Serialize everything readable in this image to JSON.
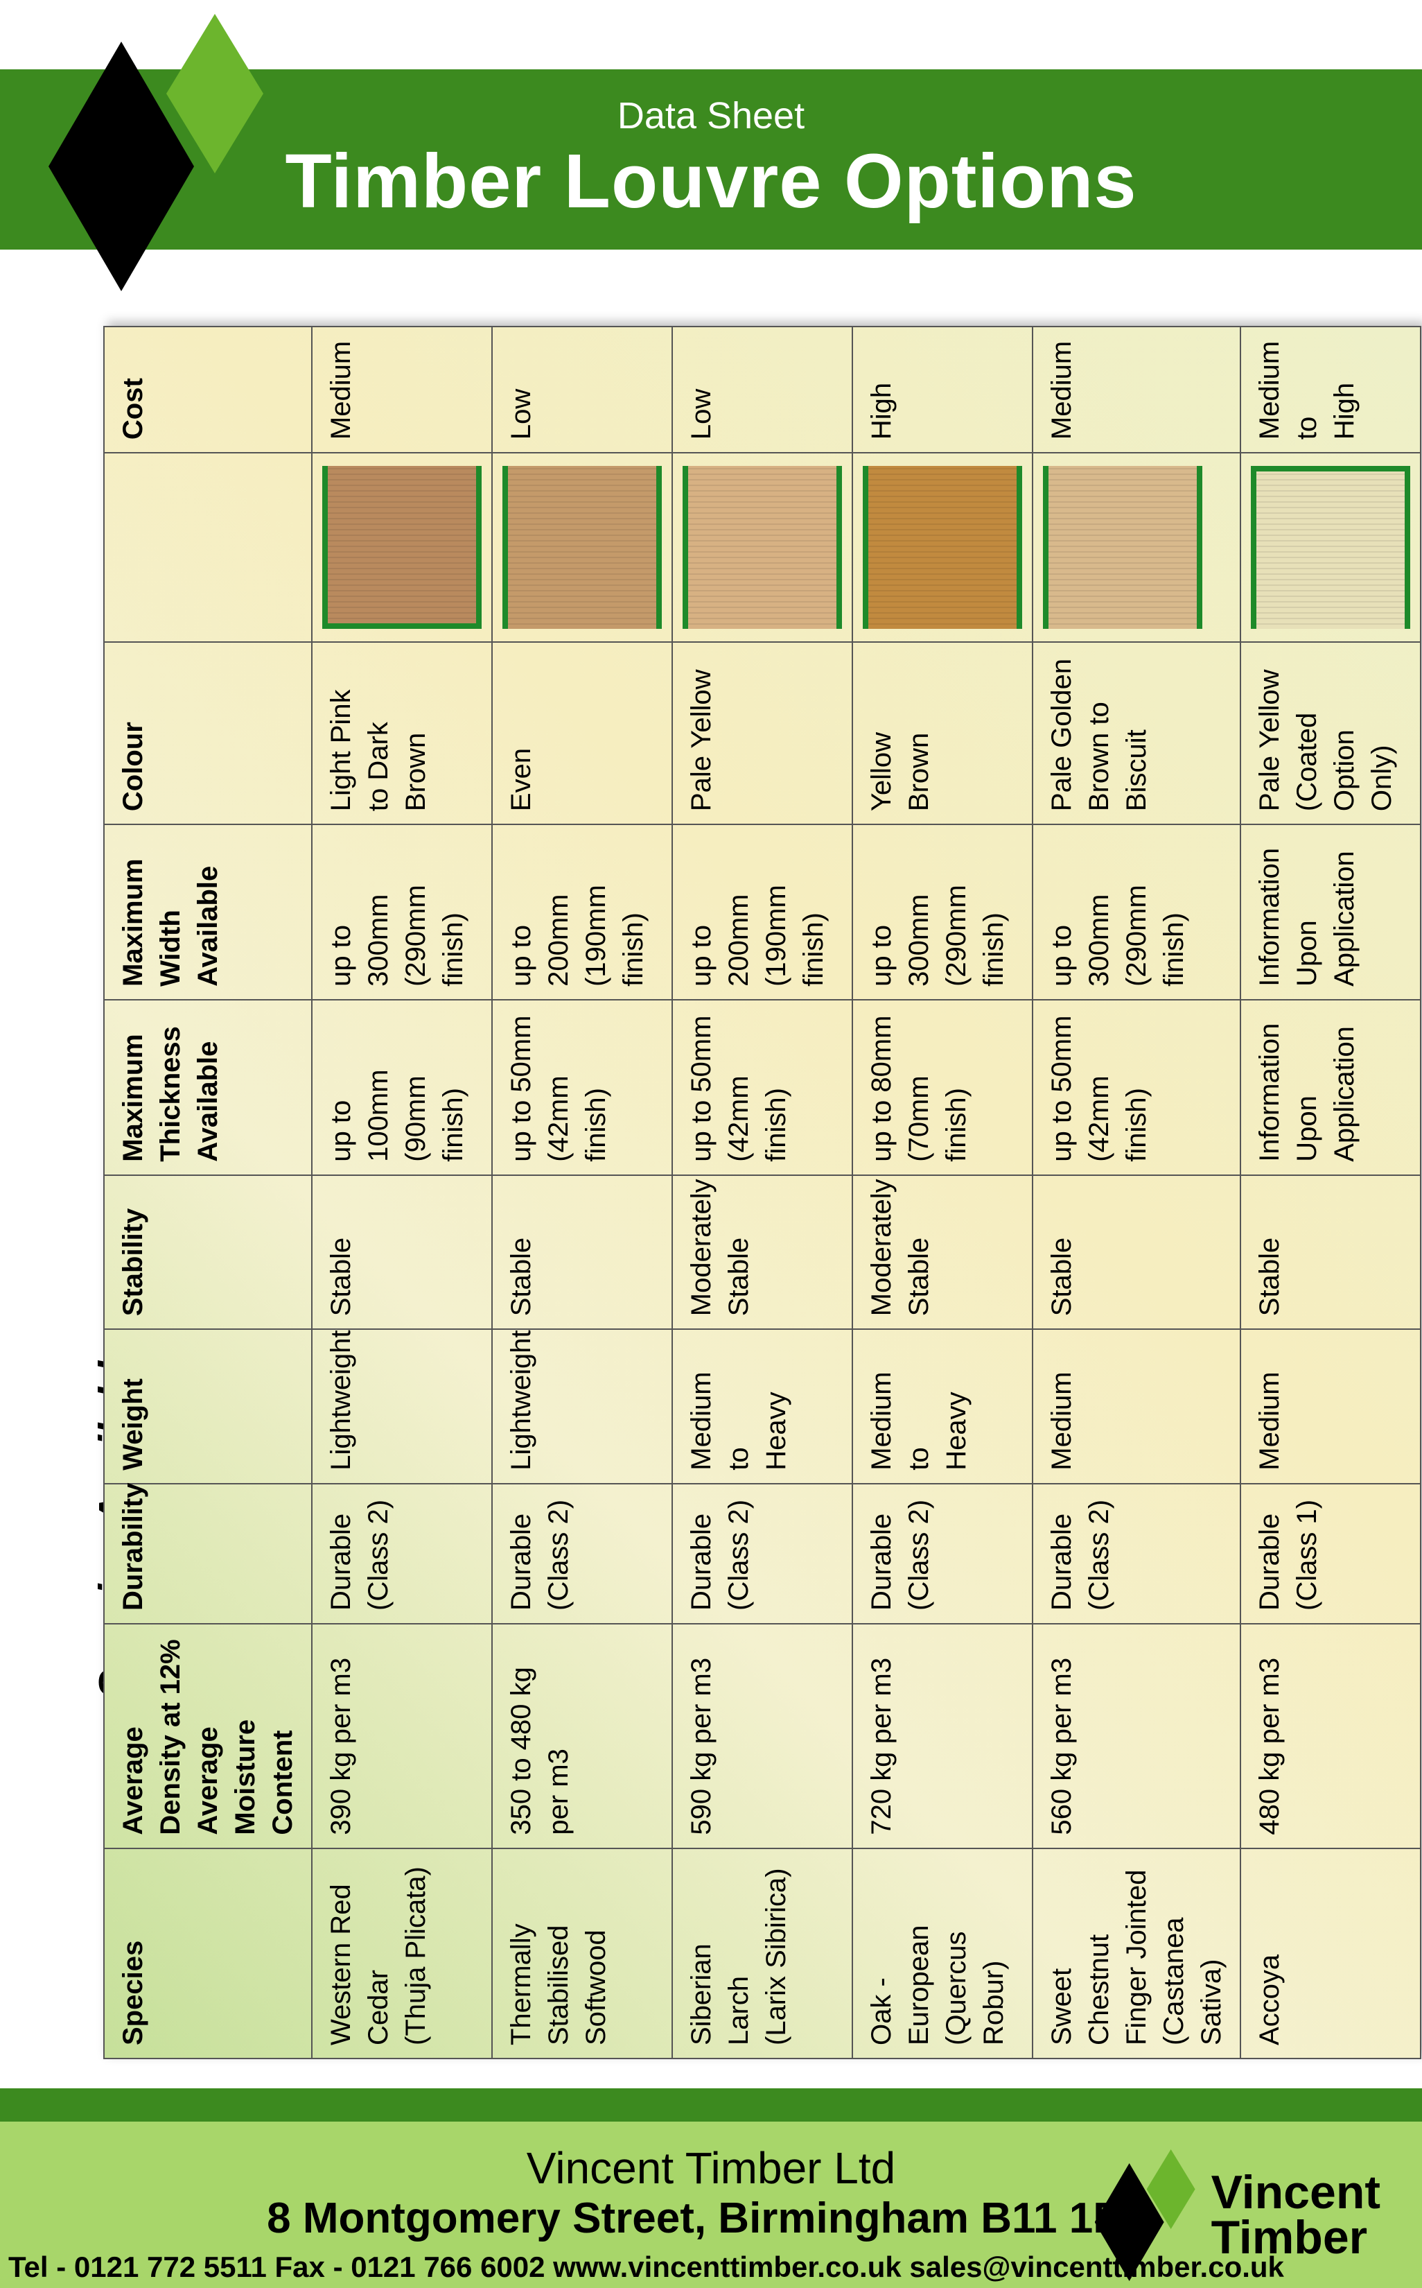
{
  "header": {
    "pretitle": "Data Sheet",
    "title": "Timber Louvre Options"
  },
  "side_caption": "Species Available",
  "colors": {
    "header_band": "#3c8a1f",
    "footer_light": "#a8d66a",
    "swatch_border": "#1e8a2a",
    "logo_green": "#6cb52d"
  },
  "table": {
    "headers": {
      "species": "Species",
      "density": "Average\nDensity at 12%\nAverage Moisture\nContent",
      "durability": "Durability",
      "weight": "Weight",
      "stability": "Stability",
      "thickness": "Maximum\nThickness\nAvailable",
      "width": "Maximum\nWidth\nAvailable",
      "colour": "Colour",
      "swatch": "",
      "cost": "Cost"
    },
    "rows": [
      {
        "species": "Western Red\nCedar\n(Thuja Plicata)",
        "density": "390 kg per m3",
        "durability": "Durable\n(Class 2)",
        "weight": "Lightweight",
        "stability": "Stable",
        "thickness": "up to 100mm\n(90mm finish)",
        "width": "up to 300mm\n(290mm finish)",
        "colour": "Light Pink\nto Dark Brown",
        "swatch_color": "#b98a5e",
        "cost": "Medium"
      },
      {
        "species": "Thermally\nStabilised\nSoftwood",
        "density": "350 to 480 kg per m3",
        "durability": "Durable\n(Class 2)",
        "weight": "Lightweight",
        "stability": "Stable",
        "thickness": "up to 50mm\n(42mm finish)",
        "width": "up to 200mm\n(190mm finish)",
        "colour": "Even",
        "swatch_color": "#c49a6a",
        "cost": "Low"
      },
      {
        "species": "Siberian\nLarch\n(Larix Sibirica)",
        "density": "590 kg per m3",
        "durability": "Durable\n(Class 2)",
        "weight": "Medium\nto\nHeavy",
        "stability": "Moderately\nStable",
        "thickness": "up to 50mm\n(42mm finish)",
        "width": "up to 200mm\n(190mm finish)",
        "colour": "Pale Yellow",
        "swatch_color": "#d7b183",
        "cost": "Low"
      },
      {
        "species": "Oak - European\n(Quercus Robur)",
        "density": "720 kg per m3",
        "durability": "Durable\n(Class 2)",
        "weight": "Medium\nto\nHeavy",
        "stability": "Moderately\nStable",
        "thickness": "up to 80mm\n(70mm finish)",
        "width": "up to 300mm\n(290mm finish)",
        "colour": "Yellow Brown",
        "swatch_color": "#c18a3f",
        "cost": "High"
      },
      {
        "species": "Sweet Chestnut\nFinger Jointed\n(Castanea Sativa)",
        "density": "560 kg per m3",
        "durability": "Durable\n(Class 2)",
        "weight": "Medium",
        "stability": "Stable",
        "thickness": "up to 50mm\n(42mm finish)",
        "width": "up to 300mm\n(290mm finish)",
        "colour": "Pale Golden\nBrown to\nBiscuit",
        "swatch_color": "#d8b98c",
        "cost": "Medium"
      },
      {
        "species": "Accoya",
        "density": "480 kg per m3",
        "durability": "Durable\n(Class 1)",
        "weight": "Medium",
        "stability": "Stable",
        "thickness": "Information\nUpon\nApplication",
        "width": "Information\nUpon\nApplication",
        "colour": "Pale Yellow\n(Coated Option\nOnly)",
        "swatch_color": "#e7e0b8",
        "cost": "Medium\nto\nHigh"
      }
    ]
  },
  "footer": {
    "company": "Vincent Timber Ltd",
    "address": "8 Montgomery Street, Birmingham B11 1DU",
    "contacts": "Tel - 0121 772 5511  Fax - 0121 766 6002  www.vincenttimber.co.uk  sales@vincenttimber.co.uk",
    "logo_line1": "Vincent",
    "logo_line2": "Timber"
  }
}
